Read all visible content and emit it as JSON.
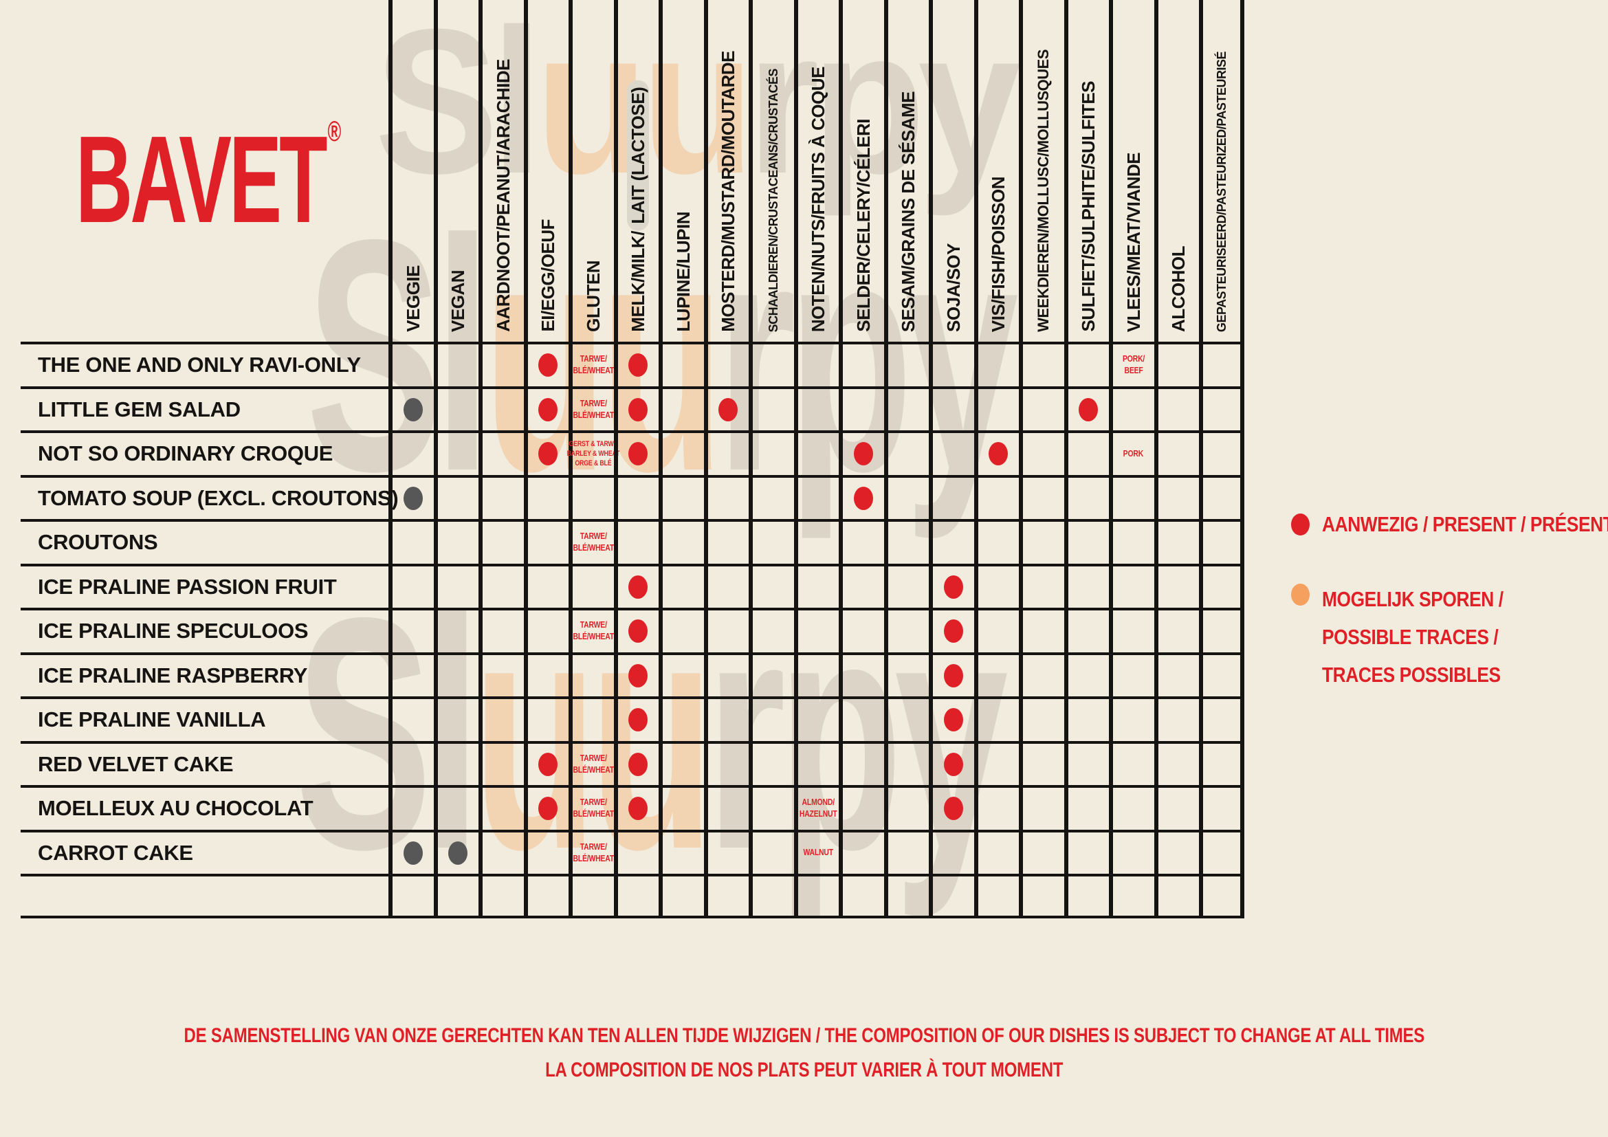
{
  "brand": {
    "logo": "BAVET",
    "registered": "®"
  },
  "watermark": {
    "text": "Sluurpy"
  },
  "colors": {
    "background": "#f2ecdf",
    "ink": "#161412",
    "present_red": "#df2127",
    "traces_orange": "#f5a05f",
    "veggie_gray": "#575757",
    "lactose_highlight": "#dcd7cb"
  },
  "legend": {
    "present": {
      "label": "AANWEZIG / PRESENT / PRÉSENT"
    },
    "traces": {
      "lines": [
        "MOGELIJK SPOREN /",
        "POSSIBLE TRACES /",
        "TRACES POSSIBLES"
      ]
    }
  },
  "footer": {
    "line1": "DE SAMENSTELLING VAN ONZE GERECHTEN KAN TEN ALLEN TIJDE WIJZIGEN / THE COMPOSITION OF OUR DISHES IS SUBJECT TO CHANGE AT ALL TIMES",
    "line2": "LA COMPOSITION DE NOS PLATS PEUT VARIER À TOUT MOMENT"
  },
  "table": {
    "columns": [
      {
        "id": "veggie",
        "label": "VEGGIE"
      },
      {
        "id": "vegan",
        "label": "VEGAN"
      },
      {
        "id": "aardnoot",
        "label": "AARDNOOT/PEANUT/ARACHIDE"
      },
      {
        "id": "ei",
        "label": "EI/EGG/OEUF"
      },
      {
        "id": "gluten",
        "label": "GLUTEN"
      },
      {
        "id": "melk",
        "label": "MELK/MILK/",
        "suffix": "LAIT (LACTOSE)"
      },
      {
        "id": "lupine",
        "label": "LUPINE/LUPIN"
      },
      {
        "id": "mosterd",
        "label": "MOSTERD/MUSTARD/MOUTARDE"
      },
      {
        "id": "schaaldieren",
        "label": "SCHAALDIEREN/CRUSTACEANS/CRUSTACÉS"
      },
      {
        "id": "noten",
        "label": "NOTEN/NUTS/FRUITS À COQUE"
      },
      {
        "id": "selder",
        "label": "SELDER/CELERY/CÉLERI"
      },
      {
        "id": "sesam",
        "label": "SESAM/GRAINS DE SÉSAME"
      },
      {
        "id": "soja",
        "label": "SOJA/SOY"
      },
      {
        "id": "vis",
        "label": "VIS/FISH/POISSON"
      },
      {
        "id": "weekdieren",
        "label": "WEEKDIEREN/MOLLUSC/MOLLUSQUES"
      },
      {
        "id": "sulfiet",
        "label": "SULFIET/SULPHITE/SULFITES"
      },
      {
        "id": "vlees",
        "label": "VLEES/MEAT/VIANDE"
      },
      {
        "id": "alcohol",
        "label": "ALCOHOL"
      },
      {
        "id": "gepasteuriseerd",
        "label": "GEPASTEURISEERD/PASTEURIZED/PASTEURISÉ"
      }
    ],
    "rows": [
      {
        "label": "THE ONE AND ONLY RAVI-ONLY",
        "cells": {
          "ei": {
            "dot": "present"
          },
          "gluten": {
            "text": [
              "TARWE/",
              "BLÉ/WHEAT"
            ]
          },
          "melk": {
            "dot": "present"
          },
          "vlees": {
            "text": [
              "PORK/",
              "BEEF"
            ]
          }
        }
      },
      {
        "label": "LITTLE GEM SALAD",
        "cells": {
          "veggie": {
            "dot": "veg"
          },
          "ei": {
            "dot": "present"
          },
          "gluten": {
            "text": [
              "TARWE/",
              "BLÉ/WHEAT"
            ]
          },
          "melk": {
            "dot": "present"
          },
          "mosterd": {
            "dot": "present"
          },
          "sulfiet": {
            "dot": "present"
          }
        }
      },
      {
        "label": "NOT SO ORDINARY CROQUE",
        "cells": {
          "ei": {
            "dot": "present"
          },
          "gluten": {
            "text": [
              "GERST & TARWE",
              "BARLEY & WHEAT",
              "ORGE & BLÉ"
            ]
          },
          "melk": {
            "dot": "present"
          },
          "selder": {
            "dot": "present"
          },
          "vis": {
            "dot": "present"
          },
          "vlees": {
            "text": [
              "PORK"
            ]
          }
        }
      },
      {
        "label": "TOMATO SOUP (EXCL. CROUTONS)",
        "cells": {
          "veggie": {
            "dot": "veg"
          },
          "selder": {
            "dot": "present"
          }
        }
      },
      {
        "label": "CROUTONS",
        "cells": {
          "gluten": {
            "text": [
              "TARWE/",
              "BLÉ/WHEAT"
            ]
          }
        }
      },
      {
        "label": "ICE PRALINE PASSION FRUIT",
        "cells": {
          "melk": {
            "dot": "present"
          },
          "soja": {
            "dot": "present"
          }
        }
      },
      {
        "label": "ICE PRALINE SPECULOOS",
        "cells": {
          "gluten": {
            "text": [
              "TARWE/",
              "BLÉ/WHEAT"
            ]
          },
          "melk": {
            "dot": "present"
          },
          "soja": {
            "dot": "present"
          }
        }
      },
      {
        "label": "ICE PRALINE RASPBERRY",
        "cells": {
          "melk": {
            "dot": "present"
          },
          "soja": {
            "dot": "present"
          }
        }
      },
      {
        "label": "ICE PRALINE VANILLA",
        "cells": {
          "melk": {
            "dot": "present"
          },
          "soja": {
            "dot": "present"
          }
        }
      },
      {
        "label": "RED VELVET CAKE",
        "cells": {
          "ei": {
            "dot": "present"
          },
          "gluten": {
            "text": [
              "TARWE/",
              "BLÉ/WHEAT"
            ]
          },
          "melk": {
            "dot": "present"
          },
          "soja": {
            "dot": "present"
          }
        }
      },
      {
        "label": "MOELLEUX AU CHOCOLAT",
        "cells": {
          "ei": {
            "dot": "present"
          },
          "gluten": {
            "text": [
              "TARWE/",
              "BLÉ/WHEAT"
            ]
          },
          "melk": {
            "dot": "present"
          },
          "noten": {
            "text": [
              "ALMOND/",
              "HAZELNUT"
            ]
          },
          "soja": {
            "dot": "present"
          }
        }
      },
      {
        "label": "CARROT CAKE",
        "cells": {
          "veggie": {
            "dot": "veg"
          },
          "vegan": {
            "dot": "veg"
          },
          "gluten": {
            "text": [
              "TARWE/",
              "BLÉ/WHEAT"
            ]
          },
          "noten": {
            "text": [
              "WALNUT"
            ]
          }
        }
      },
      {
        "label": "",
        "cells": {}
      }
    ]
  }
}
